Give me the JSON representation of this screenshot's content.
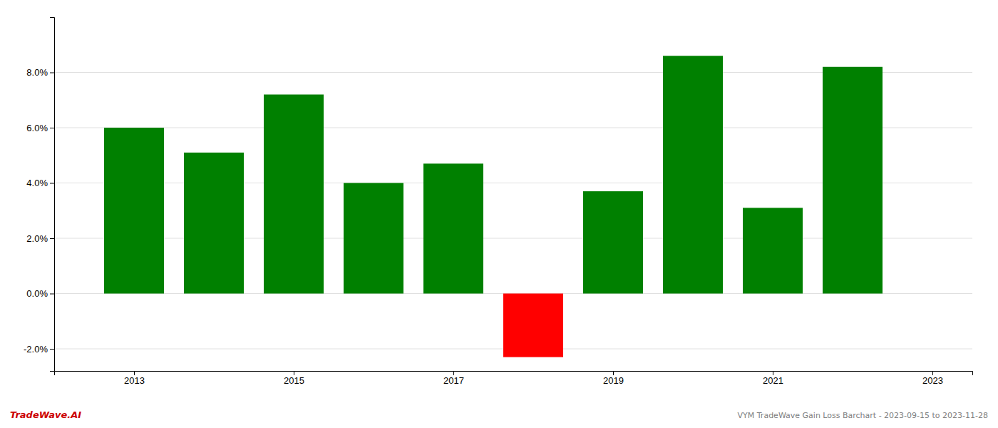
{
  "chart_data": {
    "type": "bar",
    "x": [
      2013,
      2014,
      2015,
      2016,
      2017,
      2018,
      2019,
      2020,
      2021,
      2022
    ],
    "values": [
      0.06,
      0.051,
      0.072,
      0.04,
      0.047,
      -0.023,
      0.037,
      0.086,
      0.031,
      0.082
    ],
    "colors": [
      "#008000",
      "#008000",
      "#008000",
      "#008000",
      "#008000",
      "#ff0000",
      "#008000",
      "#008000",
      "#008000",
      "#008000"
    ],
    "xlim": [
      2012.0,
      2023.5
    ],
    "xticks": [
      2013,
      2015,
      2017,
      2019,
      2021,
      2023
    ],
    "ylim": [
      -0.028,
      0.1
    ],
    "yticks": [
      {
        "value": -0.02,
        "label": "-2.0%"
      },
      {
        "value": 0.0,
        "label": "0.0%"
      },
      {
        "value": 0.02,
        "label": "2.0%"
      },
      {
        "value": 0.04,
        "label": "4.0%"
      },
      {
        "value": 0.06,
        "label": "6.0%"
      },
      {
        "value": 0.08,
        "label": "8.0%"
      }
    ],
    "grid": true,
    "annotations": [
      {
        "text": "TradeWave.AI",
        "color": "#cc0000"
      },
      {
        "text": "VYM TradeWave Gain Loss Barchart - 2023-09-15 to 2023-11-28",
        "color": "#808080"
      }
    ]
  }
}
